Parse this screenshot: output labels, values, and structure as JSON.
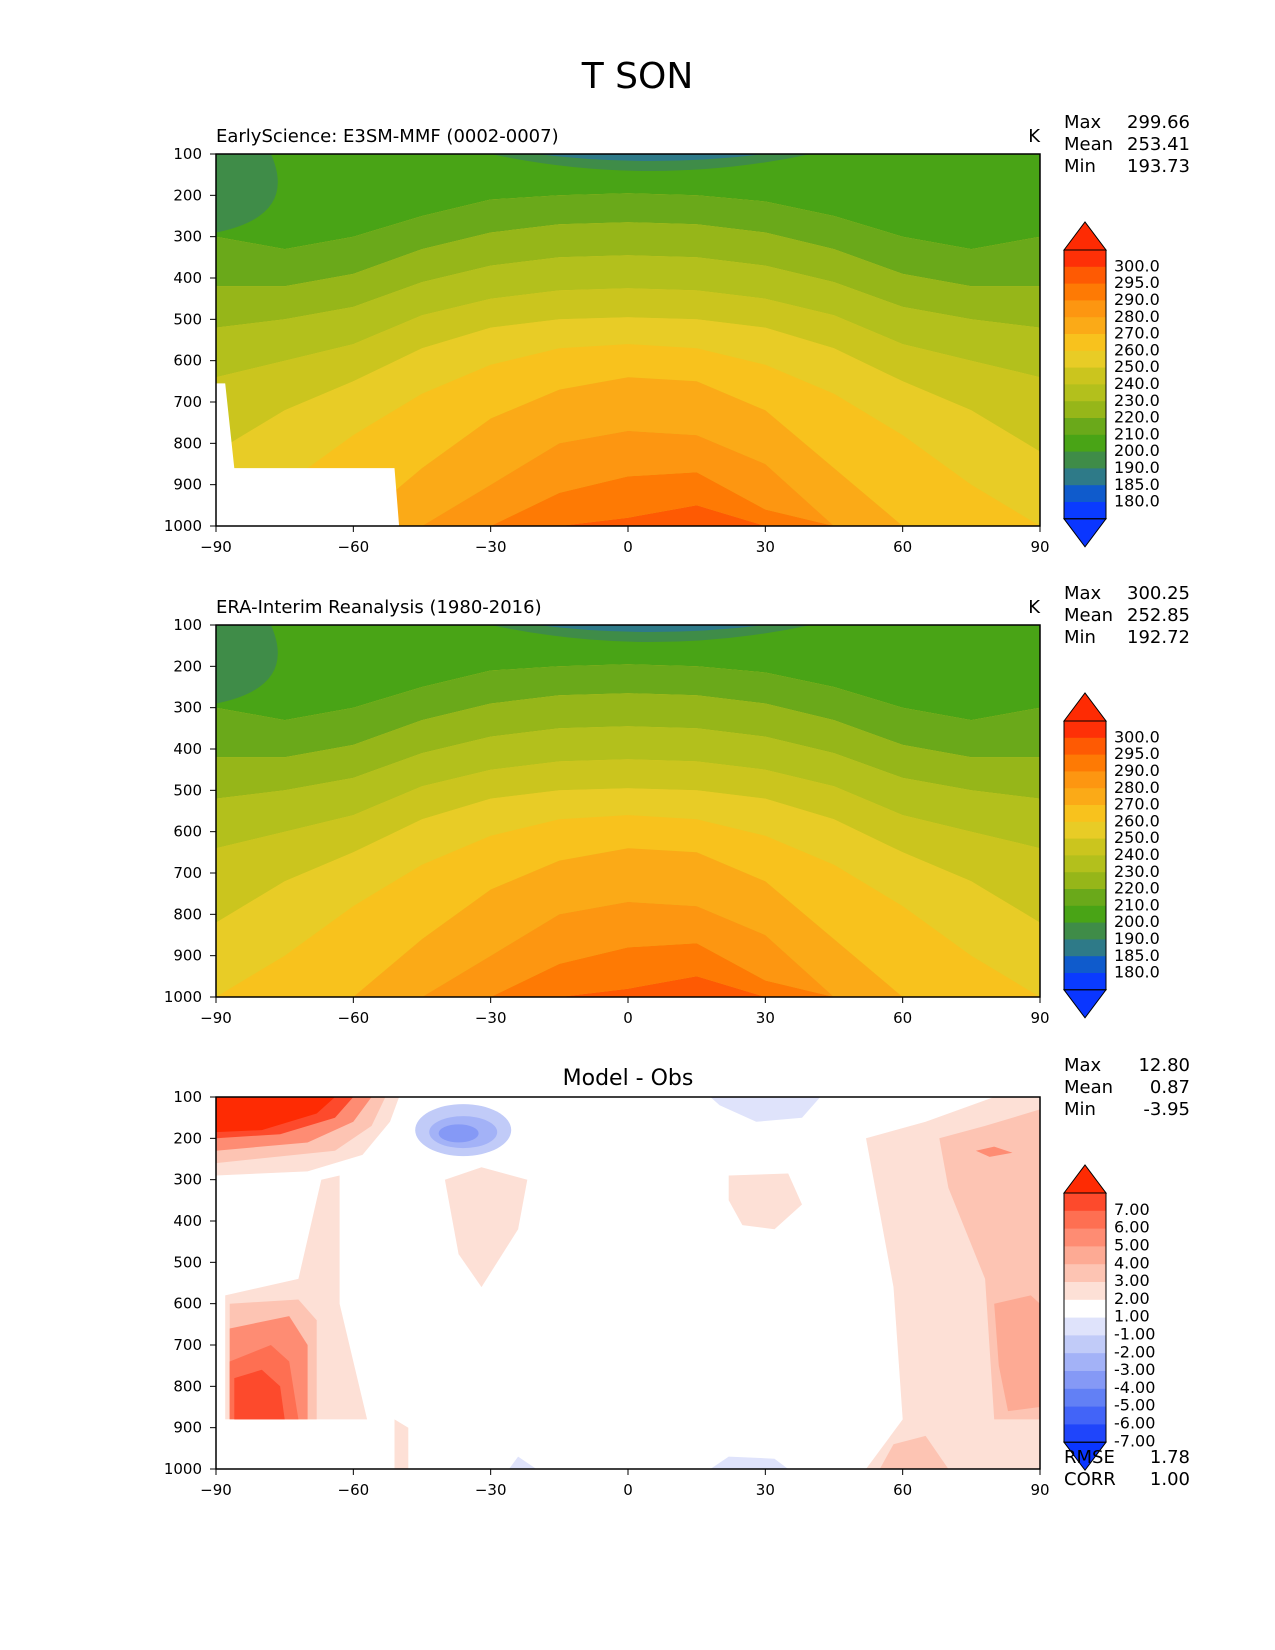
{
  "figure": {
    "title": "T SON"
  },
  "chart_data": [
    {
      "type": "heatmap",
      "title": "EarlyScience: E3SM-MMF (0002-0007)",
      "units": "K",
      "stats": {
        "max_label": "Max",
        "max": "299.66",
        "mean_label": "Mean",
        "mean": "253.41",
        "min_label": "Min",
        "min": "193.73"
      },
      "xlim": [
        -90,
        90
      ],
      "ylim": [
        1000,
        100
      ],
      "xlabel": "",
      "ylabel": "",
      "x_ticks": [
        "−90",
        "−60",
        "−30",
        "0",
        "30",
        "60",
        "90"
      ],
      "y_ticks": [
        "100",
        "200",
        "300",
        "400",
        "500",
        "600",
        "700",
        "800",
        "900",
        "1000"
      ],
      "colorbar_labels": [
        "300.0",
        "295.0",
        "290.0",
        "280.0",
        "270.0",
        "260.0",
        "250.0",
        "240.0",
        "230.0",
        "220.0",
        "210.0",
        "200.0",
        "190.0",
        "185.0",
        "180.0"
      ],
      "colorbar_colors": [
        "#fe3007",
        "#fe5a03",
        "#fe7a04",
        "#fd9611",
        "#fbaa17",
        "#f8c21d",
        "#e8cc26",
        "#cbc51e",
        "#b3c01c",
        "#96b619",
        "#6aa91a",
        "#49a416",
        "#3f8c48",
        "#2e7a88",
        "#0f5bcc",
        "#0a3bff"
      ],
      "colorbar_extend": {
        "top": "#fe2b03",
        "bottom": "#0a36ff"
      },
      "masked_region": "below ground (high southern latitudes, 650-1000 hPa)"
    },
    {
      "type": "heatmap",
      "title": "ERA-Interim Reanalysis (1980-2016)",
      "units": "K",
      "stats": {
        "max_label": "Max",
        "max": "300.25",
        "mean_label": "Mean",
        "mean": "252.85",
        "min_label": "Min",
        "min": "192.72"
      },
      "xlim": [
        -90,
        90
      ],
      "ylim": [
        1000,
        100
      ],
      "xlabel": "",
      "ylabel": "",
      "x_ticks": [
        "−90",
        "−60",
        "−30",
        "0",
        "30",
        "60",
        "90"
      ],
      "y_ticks": [
        "100",
        "200",
        "300",
        "400",
        "500",
        "600",
        "700",
        "800",
        "900",
        "1000"
      ],
      "colorbar_labels": [
        "300.0",
        "295.0",
        "290.0",
        "280.0",
        "270.0",
        "260.0",
        "250.0",
        "240.0",
        "230.0",
        "220.0",
        "210.0",
        "200.0",
        "190.0",
        "185.0",
        "180.0"
      ],
      "colorbar_colors": [
        "#fe3007",
        "#fe5a03",
        "#fe7a04",
        "#fd9611",
        "#fbaa17",
        "#f8c21d",
        "#e8cc26",
        "#cbc51e",
        "#b3c01c",
        "#96b619",
        "#6aa91a",
        "#49a416",
        "#3f8c48",
        "#2e7a88",
        "#0f5bcc",
        "#0a3bff"
      ],
      "colorbar_extend": {
        "top": "#fe2b03",
        "bottom": "#0a36ff"
      }
    },
    {
      "type": "heatmap",
      "title": "Model - Obs",
      "units": "",
      "stats": {
        "max_label": "Max",
        "max": "12.80",
        "mean_label": "Mean",
        "mean": "0.87",
        "min_label": "Min",
        "min": "-3.95"
      },
      "metrics": {
        "rmse_label": "RMSE",
        "rmse": "1.78",
        "corr_label": "CORR",
        "corr": "1.00"
      },
      "xlim": [
        -90,
        90
      ],
      "ylim": [
        1000,
        100
      ],
      "xlabel": "",
      "ylabel": "",
      "x_ticks": [
        "−90",
        "−60",
        "−30",
        "0",
        "30",
        "60",
        "90"
      ],
      "y_ticks": [
        "100",
        "200",
        "300",
        "400",
        "500",
        "600",
        "700",
        "800",
        "900",
        "1000"
      ],
      "colorbar_labels": [
        "7.00",
        "6.00",
        "5.00",
        "4.00",
        "3.00",
        "2.00",
        "1.00",
        "-1.00",
        "-2.00",
        "-3.00",
        "-4.00",
        "-5.00",
        "-6.00",
        "-7.00"
      ],
      "colorbar_colors": [
        "#fd4a2c",
        "#fe6f52",
        "#fe8c73",
        "#fdaa94",
        "#fdc4b3",
        "#fde0d6",
        "#ffffff",
        "#dfe3fb",
        "#c1cbf8",
        "#a3b2f7",
        "#8599f6",
        "#6280f5",
        "#4264f8",
        "#1f45fb"
      ],
      "colorbar_extend": {
        "top": "#fe2b03",
        "bottom": "#0a36ff"
      }
    }
  ]
}
